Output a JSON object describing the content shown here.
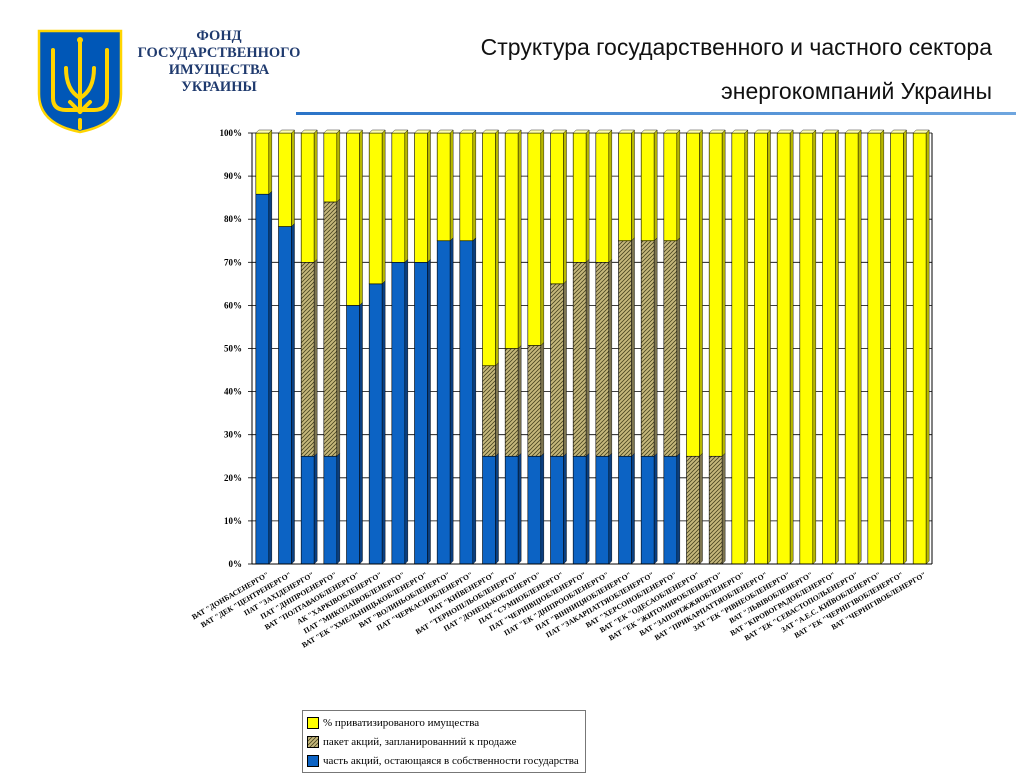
{
  "header": {
    "org_lines": [
      "ФОНД",
      "ГОСУДАРСТВЕННОГО",
      "ИМУЩЕСТВА",
      "УКРАИНЫ"
    ],
    "title_line1": "Структура государственного и частного сектора",
    "title_line2": "энергокомпаний Украины"
  },
  "colors": {
    "state": "#0c63c4",
    "planned": "#c6b87c",
    "private": "#ffff00",
    "emblem_blue": "#0057b7",
    "emblem_gold": "#ffd500"
  },
  "chart_data": {
    "type": "bar",
    "stacked": true,
    "grid": true,
    "legend_position": "bottom",
    "ylim": [
      0,
      100
    ],
    "yticks": [
      "0%",
      "10%",
      "20%",
      "30%",
      "40%",
      "50%",
      "60%",
      "70%",
      "80%",
      "90%",
      "100%"
    ],
    "categories": [
      "ВАТ \"ДОНБАСЕНЕРГО\"",
      "ВАТ \"ДЕК \"ЦЕНТРЕНЕРГО\"",
      "ПАТ \"ЗАХІДЕНЕРГО\"",
      "ПАТ \"ДНІПРОЕНЕРГО\"",
      "ВАТ \"ПОЛТАВАОБЛЕНЕРГО\"",
      "АК \"ХАРКІВОБЛЕНЕРГО\"",
      "ПАТ \"МИКОЛАЇВОБЛЕНЕРГО\"",
      "ВАТ \"ЕК \"ХМЕЛЬНИЦЬКОБЛЕНЕРГО\"",
      "ВАТ \"ВОЛИНЬОБЛЕНЕРГО\"",
      "ПАТ \"ЧЕРКАСИОБЛЕНЕРГО\"",
      "ПАТ \"КИЇВЕНЕРГО\"",
      "ВАТ \"ТЕРНОПІЛЬОБЛЕНЕРГО\"",
      "ПАТ \"ДОНЕЦЬКОБЛЕНЕРГО\"",
      "ПАТ \"СУМИОБЛЕНЕРГО\"",
      "ПАТ \"ЧЕРНІВЦІОБЛЕНЕРГО\"",
      "ПАТ \"ЕК \"ДНІПРООБЛЕНЕРГО\"",
      "ПАТ \"ВІННИЦЯОБЛЕНЕРГО\"",
      "ПАТ \"ЗАКАРПАТТЯОБЛЕНЕРГО\"",
      "ВАТ \"ХЕРСОНОБЛЕНЕРГО\"",
      "ВАТ \"ЕК \"ОДЕСАОБЛЕНЕРГО\"",
      "ВАТ \"ЕК \"ЖИТОМИРОБЛЕНЕРГО\"",
      "ВАТ \"ЗАПОРІЖЖЯОБЛЕНЕРГО\"",
      "ВАТ \"ПРИКАРПАТТЯОБЛЕНЕРГО\"",
      "ЗАТ \"ЕК \"РІВНЕОБЛЕНЕРГО\"",
      "ВАТ \"ЛЬВІВОБЛЕНЕРГО\"",
      "ВАТ \"КІРОВОГРАДОБЛЕНЕРГО\"",
      "ВАТ \"ЕК \"СЕВАСТОПОЛЬЕНЕРГО\"",
      "ЗАТ \"А.Е.С. КИЇВОБЛЕНЕРГО\"",
      "ВАТ \"ЕК \"ЧЕРНІГІВОБЛЕНЕРГО\"",
      "ВАТ \"ЧЕРНІГІВОБЛЕНЕРГО\""
    ],
    "series": [
      {
        "name": "часть акций, остающаяся в собственности государства",
        "pattern": "solid",
        "values": [
          85.8,
          78.3,
          25,
          25,
          60,
          65,
          70,
          70,
          75,
          75,
          25,
          25,
          25,
          25,
          25,
          25,
          25,
          25,
          25,
          0,
          0,
          0,
          0,
          0,
          0,
          0,
          0,
          0,
          0,
          0
        ]
      },
      {
        "name": "пакет акций, запланированний к продаже",
        "pattern": "hatched",
        "values": [
          0,
          0,
          45,
          59,
          0,
          0,
          0,
          0,
          0,
          0,
          21,
          25,
          25.7,
          40,
          45,
          45,
          50,
          50,
          50,
          25,
          25,
          0,
          0,
          0,
          0,
          0,
          0,
          0,
          0,
          0
        ]
      },
      {
        "name": "% приватизированого имущества",
        "pattern": "solid",
        "values": [
          14.2,
          21.7,
          30,
          16,
          40,
          35,
          30,
          30,
          25,
          25,
          54,
          50,
          49.3,
          35,
          30,
          30,
          25,
          25,
          25,
          75,
          75,
          100,
          100,
          100,
          100,
          100,
          100,
          100,
          100,
          100
        ]
      }
    ]
  }
}
